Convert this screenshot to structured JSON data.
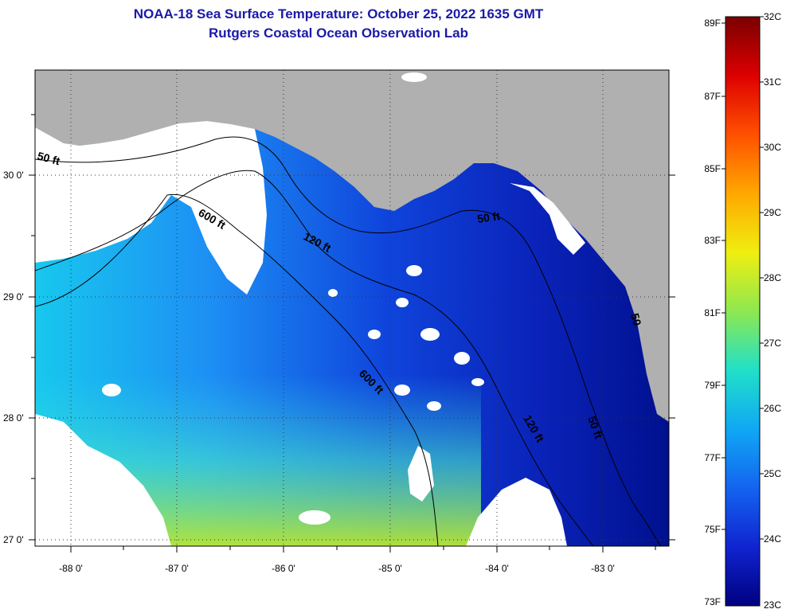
{
  "title_line1": "NOAA-18 Sea Surface Temperature:  October 25, 2022 1635 GMT",
  "title_line2": "Rutgers Coastal Ocean Observation Lab",
  "lon_ticks": [
    "-88 0'",
    "-87 0'",
    "-86 0'",
    "-85 0'",
    "-84 0'",
    "-83 0'"
  ],
  "lat_ticks": [
    "30 0'",
    "29 0'",
    "28 0'",
    "27 0'"
  ],
  "contour_labels": [
    "50 ft",
    "600 ft",
    "120 ft",
    "50 ft",
    "600 ft",
    "120 ft",
    "50 ft",
    "50"
  ],
  "colorbar": {
    "fahrenheit": [
      "89F",
      "87F",
      "85F",
      "83F",
      "81F",
      "79F",
      "77F",
      "75F",
      "73F"
    ],
    "celsius": [
      "32C",
      "31C",
      "30C",
      "29C",
      "28C",
      "27C",
      "26C",
      "25C",
      "24C",
      "23C"
    ],
    "colors": {
      "land": "#b0b0b0",
      "cloud": "#ffffff",
      "sst_cold": "#00009a",
      "sst_warm": "#b8e830"
    }
  }
}
